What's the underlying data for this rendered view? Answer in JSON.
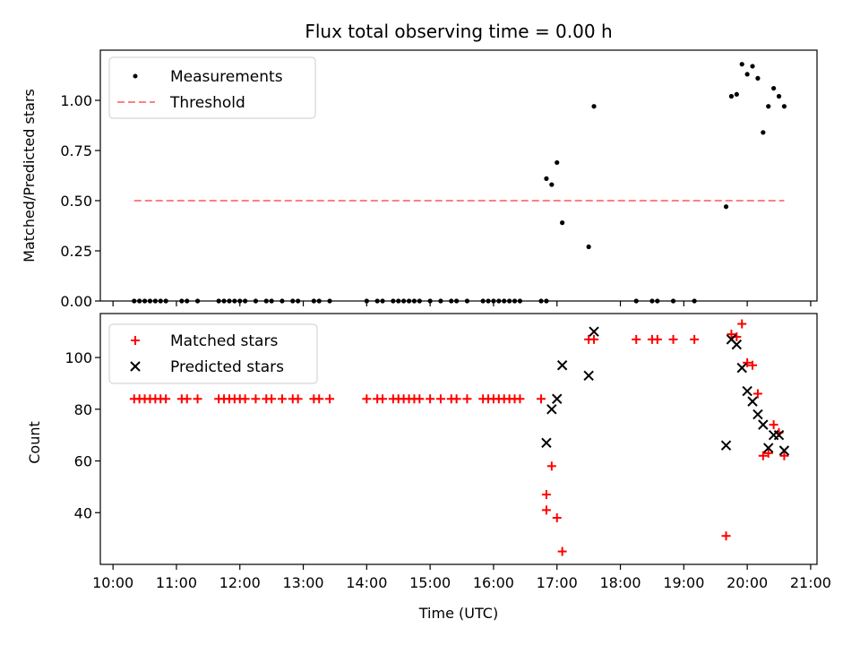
{
  "chart_data": [
    {
      "type": "scatter",
      "title": "Flux total observing time = 0.00 h",
      "xlabel": "",
      "ylabel": "Matched/Predicted stars",
      "ylim": [
        0.0,
        1.25
      ],
      "xlim": [
        "09:48",
        "21:06"
      ],
      "yticks": [
        0.0,
        0.25,
        0.5,
        0.75,
        1.0
      ],
      "ytick_labels": [
        "0.00",
        "0.25",
        "0.50",
        "0.75",
        "1.00"
      ],
      "grid": false,
      "legend": {
        "placement": "top-left",
        "entries": [
          {
            "label": "Measurements",
            "marker": "dot",
            "color": "#000000"
          },
          {
            "label": "Threshold",
            "marker": "dashed-line",
            "color": "#ff8080"
          }
        ]
      },
      "series": [
        {
          "name": "Measurements",
          "marker": "dot",
          "color": "#000000",
          "x": [
            "10:20",
            "10:25",
            "10:30",
            "10:35",
            "10:40",
            "10:45",
            "10:50",
            "11:05",
            "11:10",
            "11:20",
            "11:40",
            "11:45",
            "11:50",
            "11:55",
            "12:00",
            "12:05",
            "12:15",
            "12:25",
            "12:30",
            "12:40",
            "12:50",
            "12:55",
            "13:10",
            "13:15",
            "13:25",
            "14:00",
            "14:10",
            "14:15",
            "14:25",
            "14:30",
            "14:35",
            "14:40",
            "14:45",
            "14:50",
            "15:00",
            "15:10",
            "15:20",
            "15:25",
            "15:35",
            "15:50",
            "15:55",
            "16:00",
            "16:05",
            "16:10",
            "16:15",
            "16:20",
            "16:25",
            "16:45",
            "16:50",
            "16:50",
            "16:55",
            "17:00",
            "17:05",
            "17:30",
            "17:35",
            "18:15",
            "18:30",
            "18:35",
            "18:50",
            "19:10",
            "19:40",
            "19:45",
            "19:50",
            "19:55",
            "20:00",
            "20:05",
            "20:10",
            "20:15",
            "20:20",
            "20:25",
            "20:30",
            "20:35"
          ],
          "y": [
            0,
            0,
            0,
            0,
            0,
            0,
            0,
            0,
            0,
            0,
            0,
            0,
            0,
            0,
            0,
            0,
            0,
            0,
            0,
            0,
            0,
            0,
            0,
            0,
            0,
            0,
            0,
            0,
            0,
            0,
            0,
            0,
            0,
            0,
            0,
            0,
            0,
            0,
            0,
            0,
            0,
            0,
            0,
            0,
            0,
            0,
            0,
            0,
            0,
            0.61,
            0.58,
            0.69,
            0.39,
            0.27,
            0.97,
            0,
            0,
            0,
            0,
            0,
            0.47,
            1.02,
            1.03,
            1.18,
            1.13,
            1.17,
            1.11,
            0.84,
            0.97,
            1.06,
            1.02,
            0.97
          ]
        },
        {
          "name": "Threshold",
          "type": "line",
          "style": "dashed",
          "color": "#ff8080",
          "x": [
            "10:20",
            "20:35"
          ],
          "y": [
            0.5,
            0.5
          ]
        }
      ]
    },
    {
      "type": "scatter",
      "title": "",
      "xlabel": "Time (UTC)",
      "ylabel": "Count",
      "ylim": [
        20,
        117
      ],
      "xlim": [
        "09:48",
        "21:06"
      ],
      "yticks": [
        40,
        60,
        80,
        100
      ],
      "ytick_labels": [
        "40",
        "60",
        "80",
        "100"
      ],
      "xticks": [
        "10:00",
        "11:00",
        "12:00",
        "13:00",
        "14:00",
        "15:00",
        "16:00",
        "17:00",
        "18:00",
        "19:00",
        "20:00",
        "21:00"
      ],
      "grid": false,
      "legend": {
        "placement": "top-left",
        "entries": [
          {
            "label": "Matched stars",
            "marker": "plus",
            "color": "#ff0000"
          },
          {
            "label": "Predicted stars",
            "marker": "x",
            "color": "#000000"
          }
        ]
      },
      "series": [
        {
          "name": "Matched stars",
          "marker": "plus",
          "color": "#ff0000",
          "x": [
            "10:20",
            "10:25",
            "10:30",
            "10:35",
            "10:40",
            "10:45",
            "10:50",
            "11:05",
            "11:10",
            "11:20",
            "11:40",
            "11:45",
            "11:50",
            "11:55",
            "12:00",
            "12:05",
            "12:15",
            "12:25",
            "12:30",
            "12:40",
            "12:50",
            "12:55",
            "13:10",
            "13:15",
            "13:25",
            "14:00",
            "14:10",
            "14:15",
            "14:25",
            "14:30",
            "14:35",
            "14:40",
            "14:45",
            "14:50",
            "15:00",
            "15:10",
            "15:20",
            "15:25",
            "15:35",
            "15:50",
            "15:55",
            "16:00",
            "16:05",
            "16:10",
            "16:15",
            "16:20",
            "16:25",
            "16:45",
            "16:50",
            "16:50",
            "16:55",
            "17:00",
            "17:05",
            "17:30",
            "17:35",
            "18:15",
            "18:30",
            "18:35",
            "18:50",
            "19:10",
            "19:40",
            "19:45",
            "19:50",
            "19:55",
            "20:00",
            "20:05",
            "20:10",
            "20:15",
            "20:20",
            "20:25",
            "20:30",
            "20:35"
          ],
          "y": [
            84,
            84,
            84,
            84,
            84,
            84,
            84,
            84,
            84,
            84,
            84,
            84,
            84,
            84,
            84,
            84,
            84,
            84,
            84,
            84,
            84,
            84,
            84,
            84,
            84,
            84,
            84,
            84,
            84,
            84,
            84,
            84,
            84,
            84,
            84,
            84,
            84,
            84,
            84,
            84,
            84,
            84,
            84,
            84,
            84,
            84,
            84,
            84,
            41,
            47,
            58,
            38,
            25,
            107,
            107,
            107,
            107,
            107,
            107,
            107,
            31,
            109,
            108,
            113,
            98,
            97,
            86,
            62,
            63,
            74,
            71,
            62
          ]
        },
        {
          "name": "Predicted stars",
          "marker": "x",
          "color": "#000000",
          "x": [
            "16:50",
            "16:55",
            "17:00",
            "17:05",
            "17:30",
            "17:35",
            "19:40",
            "19:45",
            "19:50",
            "19:55",
            "20:00",
            "20:05",
            "20:10",
            "20:15",
            "20:20",
            "20:25",
            "20:30",
            "20:35"
          ],
          "y": [
            67,
            80,
            84,
            97,
            93,
            110,
            66,
            107,
            105,
            96,
            87,
            83,
            78,
            74,
            65,
            70,
            70,
            64
          ]
        }
      ]
    }
  ]
}
